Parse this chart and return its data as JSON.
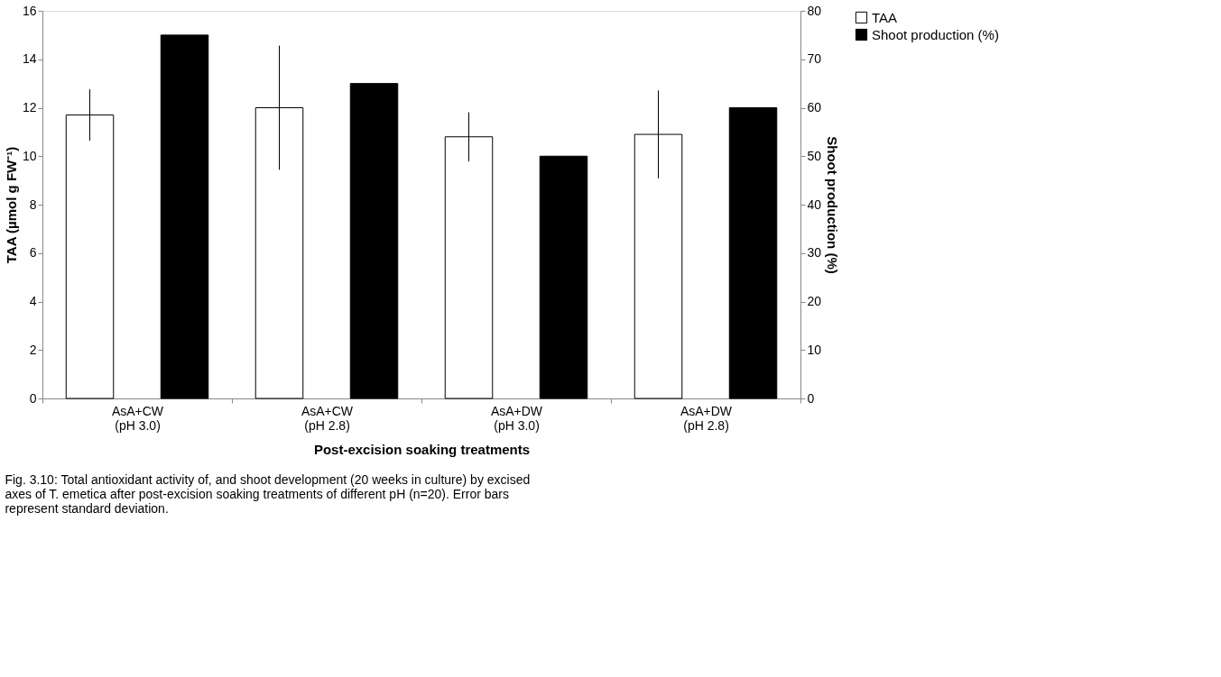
{
  "chart_data": {
    "type": "bar",
    "xlabel": "Post-excision soaking treatments",
    "ylabel": "TAA (µmol g FW⁻¹)",
    "y2label": "Shoot production (%)",
    "categories": [
      "AsA+CW\n(pH 3.0)",
      "AsA+CW\n(pH 2.8)",
      "AsA+DW\n(pH 3.0)",
      "AsA+DW\n(pH 2.8)"
    ],
    "series": [
      {
        "name": "TAA",
        "color": "#ffffff",
        "values": [
          11.7,
          12.0,
          10.8,
          10.9
        ],
        "errors": [
          1.05,
          2.55,
          1.0,
          1.8
        ]
      },
      {
        "name": "Shoot production (%)",
        "color": "#000000",
        "axis": "y2",
        "values": [
          75,
          65,
          50,
          60
        ]
      }
    ],
    "ylim": [
      0,
      16
    ],
    "yticks": [
      0,
      2,
      4,
      6,
      8,
      10,
      12,
      14,
      16
    ],
    "y2lim": [
      0,
      80
    ],
    "y2ticks": [
      0,
      10,
      20,
      30,
      40,
      50,
      60,
      70,
      80
    ],
    "grid": false,
    "legend": "right",
    "annotations": [
      "Fig. 3.10: Total antioxidant activity of, and shoot development (20 weeks in culture) by excised axes of T. emetica after post-excision soaking treatments of different pH (n=20). Error bars represent standard deviation."
    ]
  }
}
